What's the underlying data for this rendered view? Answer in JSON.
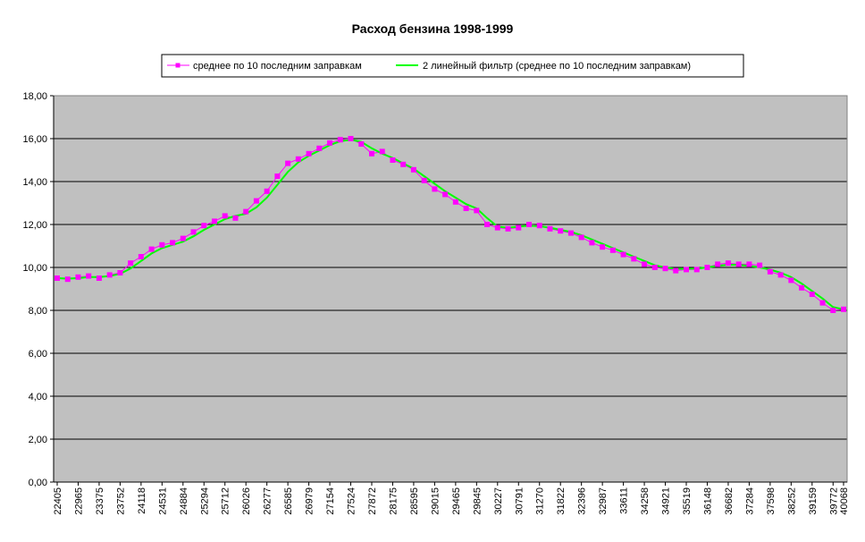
{
  "chart_data": {
    "type": "line",
    "title": "Расход бензина 1998-1999",
    "ylim": [
      0,
      18
    ],
    "y_ticks": [
      "0,00",
      "2,00",
      "4,00",
      "6,00",
      "8,00",
      "10,00",
      "12,00",
      "14,00",
      "16,00",
      "18,00"
    ],
    "x_tick_labels": [
      "22405",
      "22965",
      "23375",
      "23752",
      "24118",
      "24531",
      "24884",
      "25294",
      "25712",
      "26026",
      "26277",
      "26585",
      "26979",
      "27154",
      "27524",
      "27872",
      "28175",
      "28595",
      "29015",
      "29465",
      "29845",
      "30227",
      "30791",
      "31270",
      "31822",
      "32396",
      "32987",
      "33611",
      "34258",
      "34921",
      "35519",
      "36148",
      "36682",
      "37284",
      "37598",
      "38252",
      "39159",
      "39772",
      "40068"
    ],
    "grid": "horizontal",
    "legend_position": "top",
    "plot_background": "#c0c0c0",
    "series": [
      {
        "name": "среднее по 10 последним заправкам",
        "color": "#ff00ff",
        "marker": "square",
        "values": [
          9.5,
          9.45,
          9.55,
          9.6,
          9.5,
          9.65,
          9.75,
          10.2,
          10.5,
          10.85,
          11.05,
          11.15,
          11.35,
          11.65,
          11.95,
          12.15,
          12.4,
          12.3,
          12.6,
          13.1,
          13.55,
          14.25,
          14.85,
          15.05,
          15.3,
          15.55,
          15.8,
          15.95,
          16.0,
          15.75,
          15.3,
          15.4,
          15.0,
          14.8,
          14.55,
          14.05,
          13.65,
          13.4,
          13.05,
          12.75,
          12.65,
          12.0,
          11.85,
          11.8,
          11.85,
          12.0,
          11.95,
          11.8,
          11.7,
          11.6,
          11.4,
          11.15,
          10.95,
          10.8,
          10.6,
          10.4,
          10.15,
          10.0,
          9.95,
          9.85,
          9.9,
          9.9,
          10.0,
          10.15,
          10.2,
          10.15,
          10.15,
          10.1,
          9.8,
          9.65,
          9.4,
          9.05,
          8.75,
          8.35,
          8.0,
          8.05
        ]
      },
      {
        "name": "2 линейный фильтр (среднее по 10 последним заправкам)",
        "color": "#00ff00",
        "values": [
          9.5,
          9.48,
          9.5,
          9.55,
          9.55,
          9.6,
          9.7,
          9.95,
          10.3,
          10.65,
          10.9,
          11.05,
          11.2,
          11.45,
          11.75,
          12.0,
          12.25,
          12.4,
          12.5,
          12.8,
          13.25,
          13.85,
          14.45,
          14.9,
          15.2,
          15.45,
          15.7,
          15.88,
          15.95,
          15.85,
          15.55,
          15.3,
          15.1,
          14.85,
          14.6,
          14.25,
          13.9,
          13.55,
          13.25,
          12.95,
          12.75,
          12.3,
          11.9,
          11.85,
          11.9,
          11.95,
          11.92,
          11.85,
          11.75,
          11.65,
          11.5,
          11.3,
          11.1,
          10.9,
          10.7,
          10.5,
          10.3,
          10.1,
          10.0,
          9.93,
          9.93,
          9.95,
          10.0,
          10.08,
          10.12,
          10.12,
          10.08,
          10.0,
          9.9,
          9.75,
          9.55,
          9.25,
          8.9,
          8.55,
          8.15,
          8.05
        ]
      }
    ]
  }
}
